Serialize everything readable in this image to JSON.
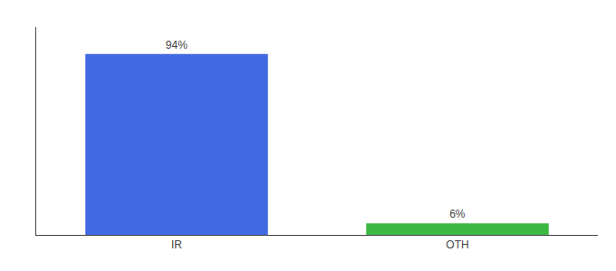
{
  "chart_data": {
    "type": "bar",
    "categories": [
      "IR",
      "OTH"
    ],
    "values": [
      94,
      6
    ],
    "value_labels": [
      "94%",
      "6%"
    ],
    "colors": [
      "#4169e1",
      "#3cb943"
    ],
    "ylim": [
      0,
      108
    ],
    "yticks": [],
    "data_labels": true,
    "tick_labels": "x",
    "grid": false
  }
}
